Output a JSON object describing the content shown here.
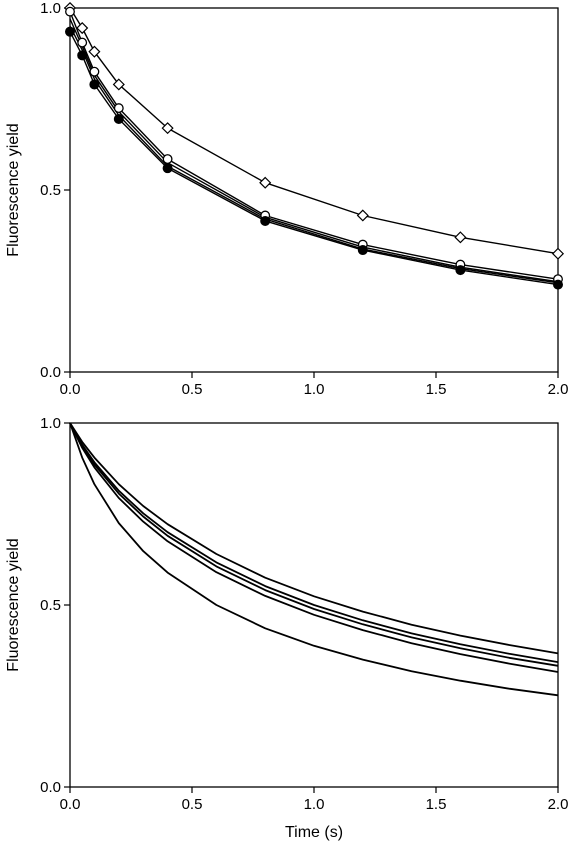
{
  "chart_data": [
    {
      "type": "line",
      "title": "",
      "xlabel": "",
      "ylabel": "Fluorescence yield",
      "xlim": [
        0,
        2.0
      ],
      "ylim": [
        0,
        1.0
      ],
      "xticks": [
        "0.0",
        "0.5",
        "1.0",
        "1.5",
        "2.0"
      ],
      "yticks": [
        "0.0",
        "0.5",
        "1.0"
      ],
      "grid": false,
      "markers": true,
      "series": [
        {
          "marker": "diamond-open",
          "x": [
            0,
            0.05,
            0.1,
            0.2,
            0.4,
            0.8,
            1.2,
            1.6,
            2.0
          ],
          "y": [
            1.0,
            0.945,
            0.88,
            0.79,
            0.67,
            0.52,
            0.43,
            0.37,
            0.325
          ]
        },
        {
          "marker": "circle-open",
          "x": [
            0,
            0.05,
            0.1,
            0.2,
            0.4,
            0.8,
            1.2,
            1.6,
            2.0
          ],
          "y": [
            0.99,
            0.905,
            0.825,
            0.725,
            0.585,
            0.43,
            0.35,
            0.295,
            0.255
          ]
        },
        {
          "marker": "line",
          "x": [
            0,
            0.05,
            0.1,
            0.2,
            0.4,
            0.8,
            1.2,
            1.6,
            2.0
          ],
          "y": [
            0.97,
            0.895,
            0.815,
            0.715,
            0.575,
            0.425,
            0.343,
            0.288,
            0.248
          ]
        },
        {
          "marker": "line",
          "x": [
            0,
            0.05,
            0.1,
            0.2,
            0.4,
            0.8,
            1.2,
            1.6,
            2.0
          ],
          "y": [
            0.95,
            0.885,
            0.805,
            0.705,
            0.565,
            0.42,
            0.338,
            0.284,
            0.245
          ]
        },
        {
          "marker": "circle-filled",
          "x": [
            0,
            0.05,
            0.1,
            0.2,
            0.4,
            0.8,
            1.2,
            1.6,
            2.0
          ],
          "y": [
            0.935,
            0.87,
            0.79,
            0.695,
            0.56,
            0.415,
            0.335,
            0.28,
            0.24
          ]
        }
      ]
    },
    {
      "type": "line",
      "title": "",
      "xlabel": "Time (s)",
      "ylabel": "Fluorescence yield",
      "xlim": [
        0,
        2.0
      ],
      "ylim": [
        0,
        1.0
      ],
      "xticks": [
        "0.0",
        "0.5",
        "1.0",
        "1.5",
        "2.0"
      ],
      "yticks": [
        "0.0",
        "0.5",
        "1.0"
      ],
      "grid": false,
      "markers": false,
      "series": [
        {
          "x": [
            0,
            0.05,
            0.1,
            0.2,
            0.3,
            0.4,
            0.6,
            0.8,
            1.0,
            1.2,
            1.4,
            1.6,
            1.8,
            2.0
          ],
          "y": [
            1.0,
            0.948,
            0.905,
            0.832,
            0.772,
            0.722,
            0.64,
            0.575,
            0.524,
            0.482,
            0.446,
            0.416,
            0.39,
            0.367
          ]
        },
        {
          "x": [
            0,
            0.05,
            0.1,
            0.2,
            0.3,
            0.4,
            0.6,
            0.8,
            1.0,
            1.2,
            1.4,
            1.6,
            1.8,
            2.0
          ],
          "y": [
            1.0,
            0.94,
            0.892,
            0.814,
            0.752,
            0.7,
            0.617,
            0.552,
            0.5,
            0.458,
            0.422,
            0.392,
            0.366,
            0.343
          ]
        },
        {
          "x": [
            0,
            0.05,
            0.1,
            0.2,
            0.3,
            0.4,
            0.6,
            0.8,
            1.0,
            1.2,
            1.4,
            1.6,
            1.8,
            2.0
          ],
          "y": [
            1.0,
            0.936,
            0.886,
            0.806,
            0.743,
            0.69,
            0.606,
            0.541,
            0.489,
            0.447,
            0.411,
            0.381,
            0.355,
            0.333
          ]
        },
        {
          "x": [
            0,
            0.05,
            0.1,
            0.2,
            0.3,
            0.4,
            0.6,
            0.8,
            1.0,
            1.2,
            1.4,
            1.6,
            1.8,
            2.0
          ],
          "y": [
            1.0,
            0.932,
            0.878,
            0.794,
            0.729,
            0.675,
            0.59,
            0.525,
            0.473,
            0.431,
            0.395,
            0.365,
            0.339,
            0.316
          ]
        },
        {
          "x": [
            0,
            0.05,
            0.1,
            0.2,
            0.3,
            0.4,
            0.6,
            0.8,
            1.0,
            1.2,
            1.4,
            1.6,
            1.8,
            2.0
          ],
          "y": [
            1.0,
            0.905,
            0.832,
            0.725,
            0.648,
            0.589,
            0.5,
            0.436,
            0.388,
            0.35,
            0.318,
            0.292,
            0.27,
            0.252
          ]
        }
      ]
    }
  ]
}
